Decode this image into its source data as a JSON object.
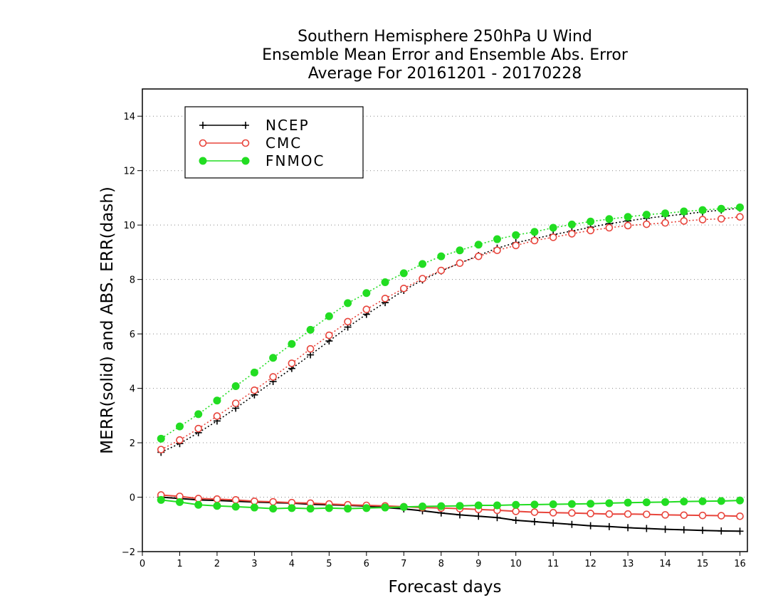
{
  "chart_data": {
    "type": "line",
    "title": [
      "Southern Hemisphere 250hPa U Wind",
      "Ensemble Mean Error and Ensemble Abs. Error",
      "Average For 20161201 - 20170228"
    ],
    "xlabel": "Forecast days",
    "ylabel": "MERR(solid) and ABS. ERR(dash)",
    "xlim": [
      0,
      16.2
    ],
    "ylim": [
      -2,
      15
    ],
    "xticks": [
      0,
      1,
      2,
      3,
      4,
      5,
      6,
      7,
      8,
      9,
      10,
      11,
      12,
      13,
      14,
      15,
      16
    ],
    "yticks": [
      -2,
      0,
      2,
      4,
      6,
      8,
      10,
      12,
      14
    ],
    "grid": "horizontal dotted",
    "legend_position": "top-left",
    "x": [
      0.5,
      1,
      1.5,
      2,
      2.5,
      3,
      3.5,
      4,
      4.5,
      5,
      5.5,
      6,
      6.5,
      7,
      7.5,
      8,
      8.5,
      9,
      9.5,
      10,
      10.5,
      11,
      11.5,
      12,
      12.5,
      13,
      13.5,
      14,
      14.5,
      15,
      15.5,
      16
    ],
    "series": [
      {
        "name": "NCEP",
        "color": "#000000",
        "marker": "plus",
        "abs_error": [
          1.65,
          1.97,
          2.37,
          2.8,
          3.27,
          3.76,
          4.25,
          4.73,
          5.23,
          5.74,
          6.25,
          6.72,
          7.15,
          7.6,
          7.98,
          8.31,
          8.6,
          8.88,
          9.15,
          9.35,
          9.5,
          9.65,
          9.78,
          9.92,
          10.05,
          10.15,
          10.25,
          10.33,
          10.4,
          10.48,
          10.55,
          10.62
        ],
        "mean_error": [
          0.0,
          -0.05,
          -0.1,
          -0.12,
          -0.15,
          -0.18,
          -0.2,
          -0.22,
          -0.26,
          -0.28,
          -0.3,
          -0.33,
          -0.38,
          -0.43,
          -0.5,
          -0.58,
          -0.65,
          -0.7,
          -0.75,
          -0.85,
          -0.9,
          -0.95,
          -1.0,
          -1.05,
          -1.08,
          -1.12,
          -1.15,
          -1.18,
          -1.2,
          -1.22,
          -1.24,
          -1.25
        ]
      },
      {
        "name": "CMC",
        "color": "#e8453c",
        "marker": "open-circle",
        "abs_error": [
          1.75,
          2.1,
          2.52,
          2.98,
          3.45,
          3.93,
          4.42,
          4.92,
          5.45,
          5.95,
          6.45,
          6.9,
          7.3,
          7.67,
          8.03,
          8.33,
          8.6,
          8.85,
          9.07,
          9.25,
          9.43,
          9.55,
          9.68,
          9.8,
          9.9,
          9.98,
          10.03,
          10.08,
          10.15,
          10.2,
          10.23,
          10.3
        ],
        "mean_error": [
          0.08,
          0.03,
          -0.05,
          -0.07,
          -0.1,
          -0.15,
          -0.17,
          -0.2,
          -0.22,
          -0.25,
          -0.28,
          -0.3,
          -0.32,
          -0.35,
          -0.38,
          -0.4,
          -0.42,
          -0.45,
          -0.48,
          -0.52,
          -0.55,
          -0.57,
          -0.58,
          -0.6,
          -0.62,
          -0.62,
          -0.63,
          -0.65,
          -0.66,
          -0.67,
          -0.68,
          -0.7
        ]
      },
      {
        "name": "FNMOC",
        "color": "#22dd22",
        "marker": "filled-circle",
        "abs_error": [
          2.15,
          2.6,
          3.05,
          3.55,
          4.08,
          4.58,
          5.12,
          5.63,
          6.15,
          6.65,
          7.13,
          7.5,
          7.9,
          8.23,
          8.57,
          8.85,
          9.07,
          9.28,
          9.48,
          9.63,
          9.75,
          9.9,
          10.02,
          10.13,
          10.22,
          10.3,
          10.38,
          10.43,
          10.5,
          10.55,
          10.6,
          10.65
        ],
        "mean_error": [
          -0.1,
          -0.18,
          -0.28,
          -0.32,
          -0.35,
          -0.38,
          -0.42,
          -0.4,
          -0.42,
          -0.4,
          -0.42,
          -0.4,
          -0.38,
          -0.36,
          -0.34,
          -0.33,
          -0.32,
          -0.3,
          -0.3,
          -0.28,
          -0.27,
          -0.26,
          -0.25,
          -0.24,
          -0.22,
          -0.2,
          -0.19,
          -0.18,
          -0.16,
          -0.15,
          -0.14,
          -0.12
        ]
      }
    ]
  }
}
